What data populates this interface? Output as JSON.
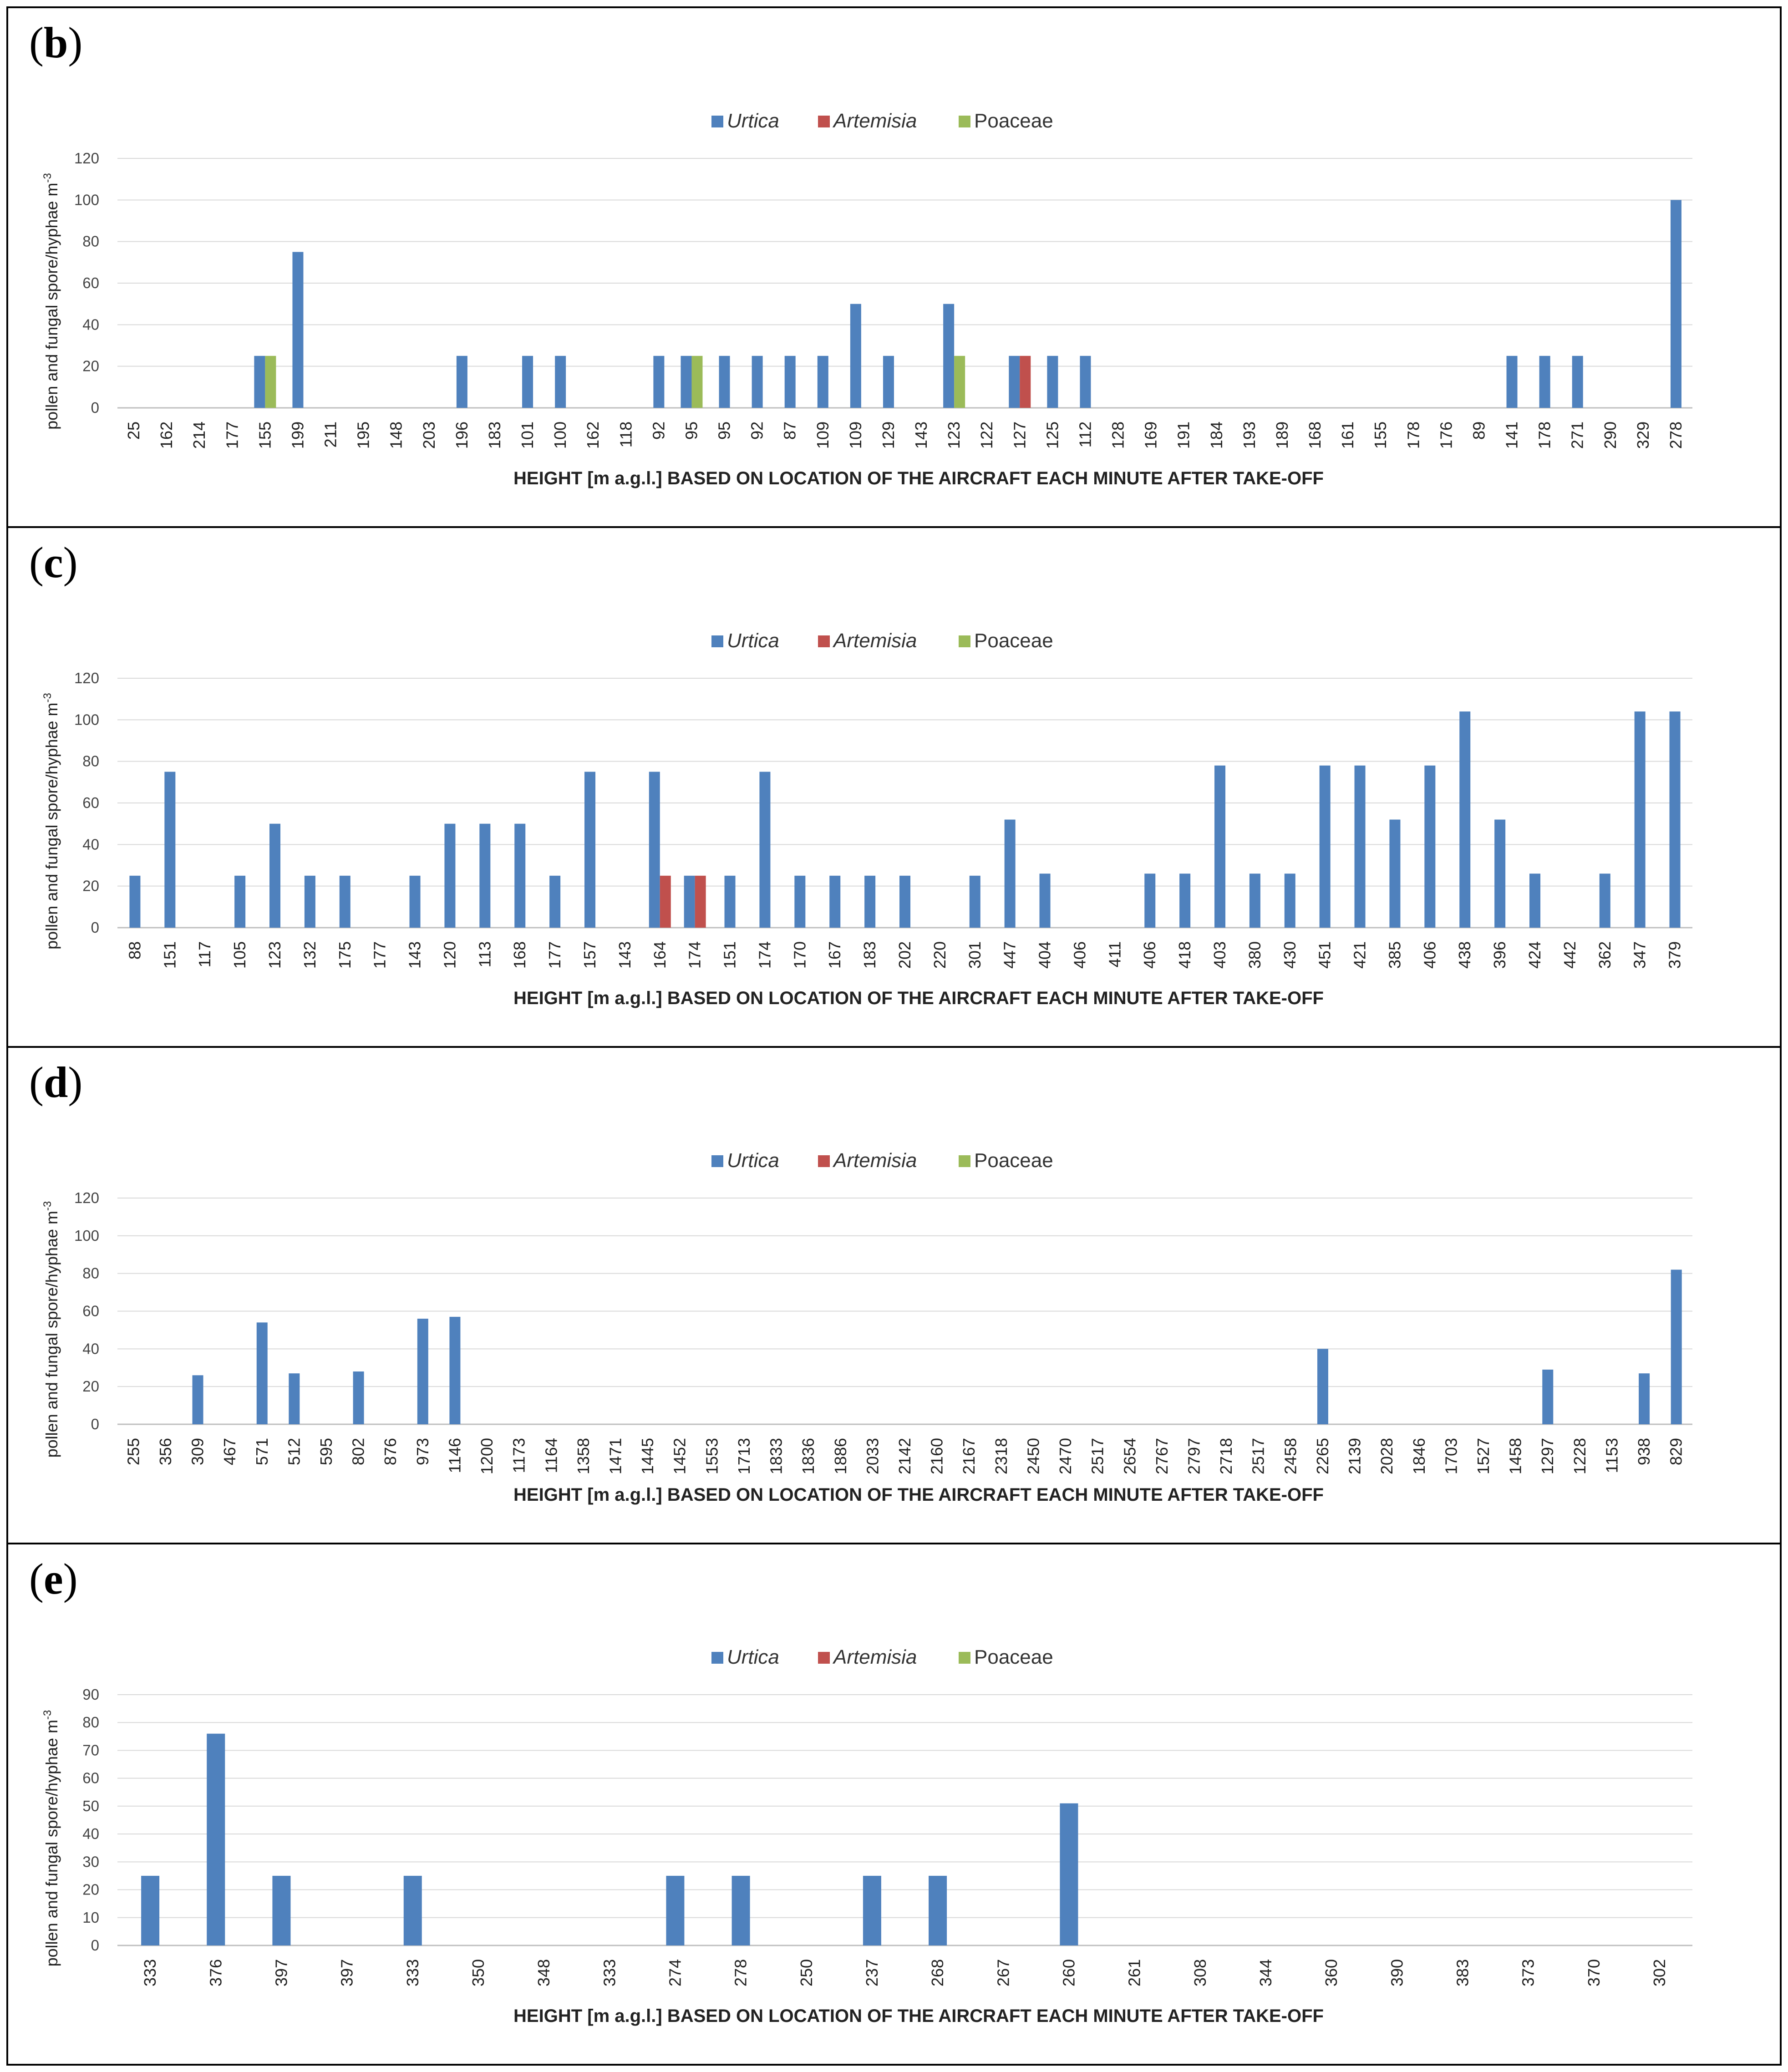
{
  "colors": {
    "Urtica": "#4f81bd",
    "Artemisia": "#c0504d",
    "Poaceae": "#9bbb59",
    "grid": "#d9d9d9",
    "axis": "#bfbfbf"
  },
  "chart_data": [
    {
      "type": "bar",
      "panel_label": "b",
      "title": "",
      "legend": [
        "Urtica",
        "Artemisia",
        "Poaceae"
      ],
      "ylabel": "pollen and fungal spore/hyphae m",
      "ylabel_sup": "-3",
      "xlabel": "HEIGHT [m a.g.l.] BASED ON LOCATION OF THE AIRCRAFT EACH MINUTE AFTER TAKE-OFF",
      "ylim": [
        0,
        120
      ],
      "yticks": [
        "0",
        "20",
        "40",
        "60",
        "80",
        "100",
        "120"
      ],
      "categories": [
        "25",
        "162",
        "214",
        "177",
        "155",
        "199",
        "211",
        "195",
        "148",
        "203",
        "196",
        "183",
        "101",
        "100",
        "162",
        "118",
        "92",
        "95",
        "95",
        "92",
        "87",
        "109",
        "109",
        "129",
        "143",
        "123",
        "122",
        "127",
        "125",
        "112",
        "128",
        "169",
        "191",
        "184",
        "193",
        "189",
        "168",
        "161",
        "155",
        "178",
        "176",
        "89",
        "141",
        "178",
        "271",
        "290",
        "329",
        "278"
      ],
      "series": [
        {
          "name": "Urtica",
          "values": [
            0,
            0,
            0,
            0,
            25,
            75,
            0,
            0,
            0,
            0,
            25,
            0,
            25,
            25,
            0,
            0,
            25,
            25,
            25,
            25,
            25,
            25,
            50,
            25,
            0,
            50,
            0,
            25,
            25,
            25,
            0,
            0,
            0,
            0,
            0,
            0,
            0,
            0,
            0,
            0,
            0,
            0,
            25,
            25,
            25,
            0,
            0,
            100
          ]
        },
        {
          "name": "Artemisia",
          "values": [
            0,
            0,
            0,
            0,
            0,
            0,
            0,
            0,
            0,
            0,
            0,
            0,
            0,
            0,
            0,
            0,
            0,
            0,
            0,
            0,
            0,
            0,
            0,
            0,
            0,
            0,
            0,
            25,
            0,
            0,
            0,
            0,
            0,
            0,
            0,
            0,
            0,
            0,
            0,
            0,
            0,
            0,
            0,
            0,
            0,
            0,
            0,
            0
          ]
        },
        {
          "name": "Poaceae",
          "values": [
            0,
            0,
            0,
            0,
            25,
            0,
            0,
            0,
            0,
            0,
            0,
            0,
            0,
            0,
            0,
            0,
            0,
            25,
            0,
            0,
            0,
            0,
            0,
            0,
            0,
            25,
            0,
            0,
            0,
            0,
            0,
            0,
            0,
            0,
            0,
            0,
            0,
            0,
            0,
            0,
            0,
            0,
            0,
            0,
            0,
            0,
            0,
            0
          ]
        }
      ]
    },
    {
      "type": "bar",
      "panel_label": "c",
      "title": "",
      "legend": [
        "Urtica",
        "Artemisia",
        "Poaceae"
      ],
      "ylabel": "pollen and fungal spore/hyphae m",
      "ylabel_sup": "-3",
      "xlabel": "HEIGHT [m a.g.l.] BASED ON LOCATION OF THE AIRCRAFT EACH MINUTE AFTER TAKE-OFF",
      "ylim": [
        0,
        120
      ],
      "yticks": [
        "0",
        "20",
        "40",
        "60",
        "80",
        "100",
        "120"
      ],
      "categories": [
        "88",
        "151",
        "117",
        "105",
        "123",
        "132",
        "175",
        "177",
        "143",
        "120",
        "113",
        "168",
        "177",
        "157",
        "143",
        "164",
        "174",
        "151",
        "174",
        "170",
        "167",
        "183",
        "202",
        "220",
        "301",
        "447",
        "404",
        "406",
        "411",
        "406",
        "418",
        "403",
        "380",
        "430",
        "451",
        "421",
        "385",
        "406",
        "438",
        "396",
        "424",
        "442",
        "362",
        "347",
        "379"
      ],
      "series": [
        {
          "name": "Urtica",
          "values": [
            25,
            75,
            0,
            25,
            50,
            25,
            25,
            0,
            25,
            50,
            50,
            50,
            25,
            75,
            0,
            75,
            25,
            25,
            75,
            25,
            25,
            25,
            25,
            0,
            25,
            52,
            26,
            0,
            0,
            26,
            26,
            78,
            26,
            26,
            78,
            78,
            52,
            78,
            104,
            52,
            26,
            0,
            26,
            104,
            104
          ]
        },
        {
          "name": "Artemisia",
          "values": [
            0,
            0,
            0,
            0,
            0,
            0,
            0,
            0,
            0,
            0,
            0,
            0,
            0,
            0,
            0,
            25,
            25,
            0,
            0,
            0,
            0,
            0,
            0,
            0,
            0,
            0,
            0,
            0,
            0,
            0,
            0,
            0,
            0,
            0,
            0,
            0,
            0,
            0,
            0,
            0,
            0,
            0,
            0,
            0,
            0
          ]
        },
        {
          "name": "Poaceae",
          "values": [
            0,
            0,
            0,
            0,
            0,
            0,
            0,
            0,
            0,
            0,
            0,
            0,
            0,
            0,
            0,
            0,
            0,
            0,
            0,
            0,
            0,
            0,
            0,
            0,
            0,
            0,
            0,
            0,
            0,
            0,
            0,
            0,
            0,
            0,
            0,
            0,
            0,
            0,
            0,
            0,
            0,
            0,
            0,
            0,
            0
          ]
        }
      ]
    },
    {
      "type": "bar",
      "panel_label": "d",
      "title": "",
      "legend": [
        "Urtica",
        "Artemisia",
        "Poaceae"
      ],
      "ylabel": "pollen and fungal spore/hyphae m",
      "ylabel_sup": "-3",
      "xlabel": "HEIGHT [m a.g.l.] BASED ON LOCATION OF THE AIRCRAFT EACH MINUTE AFTER TAKE-OFF",
      "ylim": [
        0,
        120
      ],
      "yticks": [
        "0",
        "20",
        "40",
        "60",
        "80",
        "100",
        "120"
      ],
      "categories": [
        "255",
        "356",
        "309",
        "467",
        "571",
        "512",
        "595",
        "802",
        "876",
        "973",
        "1146",
        "1200",
        "1173",
        "1164",
        "1358",
        "1471",
        "1445",
        "1452",
        "1553",
        "1713",
        "1833",
        "1836",
        "1886",
        "2033",
        "2142",
        "2160",
        "2167",
        "2318",
        "2450",
        "2470",
        "2517",
        "2654",
        "2767",
        "2797",
        "2718",
        "2517",
        "2458",
        "2265",
        "2139",
        "2028",
        "1846",
        "1703",
        "1527",
        "1458",
        "1297",
        "1228",
        "1153",
        "938",
        "829"
      ],
      "series": [
        {
          "name": "Urtica",
          "values": [
            0,
            0,
            26,
            0,
            54,
            27,
            0,
            28,
            0,
            56,
            57,
            0,
            0,
            0,
            0,
            0,
            0,
            0,
            0,
            0,
            0,
            0,
            0,
            0,
            0,
            0,
            0,
            0,
            0,
            0,
            0,
            0,
            0,
            0,
            0,
            0,
            0,
            40,
            0,
            0,
            0,
            0,
            0,
            0,
            29,
            0,
            0,
            27,
            82
          ]
        },
        {
          "name": "Artemisia",
          "values": [
            0,
            0,
            0,
            0,
            0,
            0,
            0,
            0,
            0,
            0,
            0,
            0,
            0,
            0,
            0,
            0,
            0,
            0,
            0,
            0,
            0,
            0,
            0,
            0,
            0,
            0,
            0,
            0,
            0,
            0,
            0,
            0,
            0,
            0,
            0,
            0,
            0,
            0,
            0,
            0,
            0,
            0,
            0,
            0,
            0,
            0,
            0,
            0,
            0
          ]
        },
        {
          "name": "Poaceae",
          "values": [
            0,
            0,
            0,
            0,
            0,
            0,
            0,
            0,
            0,
            0,
            0,
            0,
            0,
            0,
            0,
            0,
            0,
            0,
            0,
            0,
            0,
            0,
            0,
            0,
            0,
            0,
            0,
            0,
            0,
            0,
            0,
            0,
            0,
            0,
            0,
            0,
            0,
            0,
            0,
            0,
            0,
            0,
            0,
            0,
            0,
            0,
            0,
            0,
            0
          ]
        }
      ]
    },
    {
      "type": "bar",
      "panel_label": "e",
      "title": "",
      "legend": [
        "Urtica",
        "Artemisia",
        "Poaceae"
      ],
      "ylabel": "pollen and fungal spore/hyphae m",
      "ylabel_sup": "-3",
      "xlabel": "HEIGHT [m a.g.l.] BASED ON LOCATION OF THE AIRCRAFT EACH MINUTE AFTER TAKE-OFF",
      "ylim": [
        0,
        90
      ],
      "yticks": [
        "0",
        "10",
        "20",
        "30",
        "40",
        "50",
        "60",
        "70",
        "80",
        "90"
      ],
      "categories": [
        "333",
        "376",
        "397",
        "397",
        "333",
        "350",
        "348",
        "333",
        "274",
        "278",
        "250",
        "237",
        "268",
        "267",
        "260",
        "261",
        "308",
        "344",
        "360",
        "390",
        "383",
        "373",
        "370",
        "302"
      ],
      "series": [
        {
          "name": "Urtica",
          "values": [
            25,
            76,
            25,
            0,
            25,
            0,
            0,
            0,
            25,
            25,
            0,
            25,
            25,
            0,
            51,
            0,
            0,
            0,
            0,
            0,
            0,
            0,
            0,
            0
          ]
        },
        {
          "name": "Artemisia",
          "values": [
            0,
            0,
            0,
            0,
            0,
            0,
            0,
            0,
            0,
            0,
            0,
            0,
            0,
            0,
            0,
            0,
            0,
            0,
            0,
            0,
            0,
            0,
            0,
            0
          ]
        },
        {
          "name": "Poaceae",
          "values": [
            0,
            0,
            0,
            0,
            0,
            0,
            0,
            0,
            0,
            0,
            0,
            0,
            0,
            0,
            0,
            0,
            0,
            0,
            0,
            0,
            0,
            0,
            0,
            0
          ]
        }
      ]
    }
  ]
}
